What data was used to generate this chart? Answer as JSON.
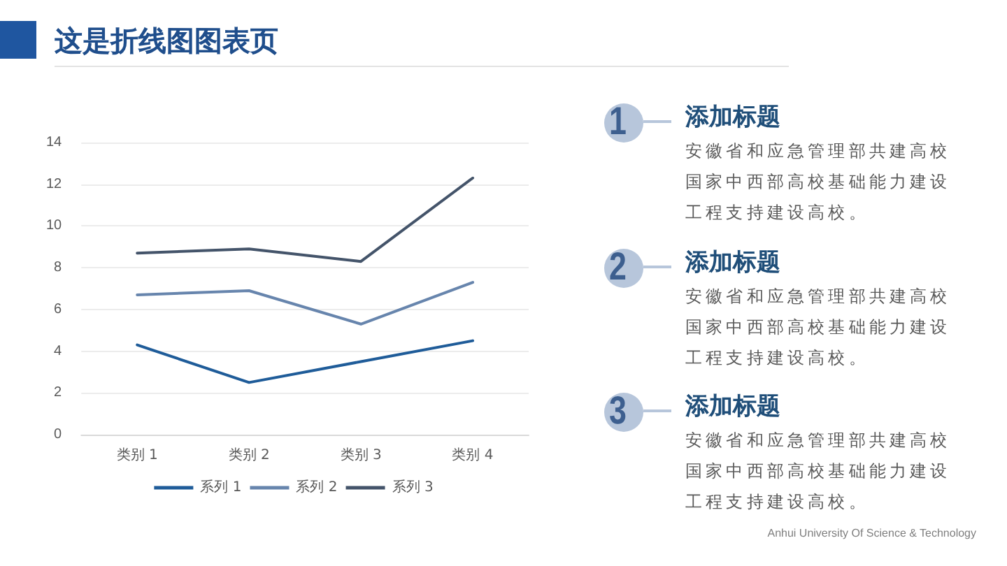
{
  "chart_data": [
    {
      "type": "line",
      "title": "这是折线图图表页",
      "categories": [
        "类别 1",
        "类别 2",
        "类别 3",
        "类别 4"
      ],
      "series": [
        {
          "name": "系列 1",
          "color": "#1f5c99",
          "values": [
            4.3,
            2.5,
            3.5,
            4.5
          ]
        },
        {
          "name": "系列 2",
          "color": "#6785ad",
          "values": [
            6.7,
            6.9,
            5.3,
            7.3
          ]
        },
        {
          "name": "系列 3",
          "color": "#44546a",
          "values": [
            8.7,
            8.9,
            8.3,
            12.3
          ]
        }
      ],
      "ylim": [
        0,
        14
      ],
      "yticks": [
        0,
        2,
        4,
        6,
        8,
        10,
        12,
        14
      ],
      "grid": "y",
      "legend": "bottom",
      "marker": "none",
      "line_style": "solid",
      "annotations": [
        "Anhui University Of Science & Technology"
      ]
    },
    {
      "type": "other",
      "title": "添加标题",
      "annotations": [
        "1",
        "安徽省和应急管理部共建高校国家中西部高校基础能力建设工程支持建设高校。"
      ]
    },
    {
      "type": "other",
      "title": "添加标题",
      "annotations": [
        "2",
        "安徽省和应急管理部共建高校国家中西部高校基础能力建设工程支持建设高校。"
      ]
    },
    {
      "type": "other",
      "title": "添加标题",
      "annotations": [
        "3",
        "安徽省和应急管理部共建高校国家中西部高校基础能力建设工程支持建设高校。"
      ]
    }
  ]
}
